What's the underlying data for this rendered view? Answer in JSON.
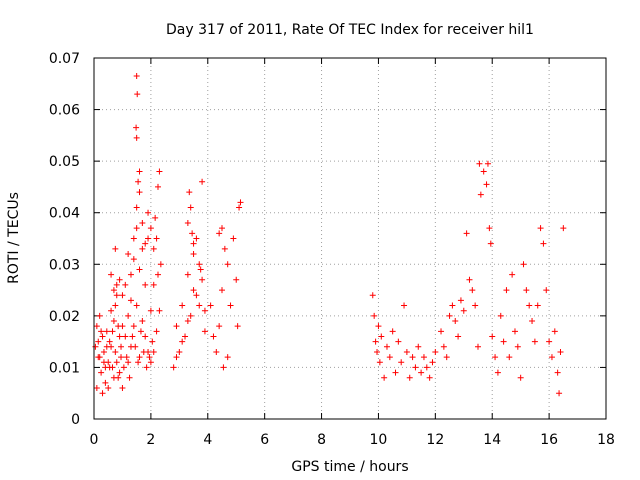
{
  "chart_data": {
    "type": "scatter",
    "title": "Day 317 of 2011, Rate Of TEC Index for receiver hil1",
    "xlabel": "GPS time / hours",
    "ylabel": "ROTI / TECUs",
    "xlim": [
      0,
      18
    ],
    "ylim": [
      0,
      0.07
    ],
    "xticks": [
      0,
      2,
      4,
      6,
      8,
      10,
      12,
      14,
      16,
      18
    ],
    "xtick_labels": [
      "0",
      "2",
      "4",
      "6",
      "8",
      "10",
      "12",
      "14",
      "16",
      "18"
    ],
    "yticks": [
      0,
      0.01,
      0.02,
      0.03,
      0.04,
      0.05,
      0.06,
      0.07
    ],
    "ytick_labels": [
      "0",
      "0.01",
      "0.02",
      "0.03",
      "0.04",
      "0.05",
      "0.06",
      "0.07"
    ],
    "grid": true,
    "legend": "none",
    "marker": "plus",
    "color": "#ff0000",
    "series": [
      {
        "name": "hil1",
        "points": [
          [
            0.05,
            0.014
          ],
          [
            0.1,
            0.018
          ],
          [
            0.15,
            0.012
          ],
          [
            0.2,
            0.02
          ],
          [
            0.25,
            0.009
          ],
          [
            0.3,
            0.016
          ],
          [
            0.35,
            0.013
          ],
          [
            0.4,
            0.007
          ],
          [
            0.45,
            0.017
          ],
          [
            0.5,
            0.011
          ],
          [
            0.55,
            0.015
          ],
          [
            0.6,
            0.021
          ],
          [
            0.65,
            0.01
          ],
          [
            0.7,
            0.019
          ],
          [
            0.75,
            0.013
          ],
          [
            0.8,
            0.024
          ],
          [
            0.85,
            0.008
          ],
          [
            0.9,
            0.016
          ],
          [
            0.95,
            0.012
          ],
          [
            1.0,
            0.018
          ],
          [
            0.1,
            0.006
          ],
          [
            0.2,
            0.012
          ],
          [
            0.3,
            0.005
          ],
          [
            0.4,
            0.01
          ],
          [
            0.5,
            0.006
          ],
          [
            0.6,
            0.014
          ],
          [
            0.7,
            0.008
          ],
          [
            0.8,
            0.011
          ],
          [
            0.9,
            0.009
          ],
          [
            1.0,
            0.006
          ],
          [
            0.15,
            0.015
          ],
          [
            0.25,
            0.017
          ],
          [
            0.35,
            0.011
          ],
          [
            0.45,
            0.014
          ],
          [
            0.55,
            0.01
          ],
          [
            0.65,
            0.017
          ],
          [
            0.75,
            0.022
          ],
          [
            0.85,
            0.018
          ],
          [
            0.95,
            0.014
          ],
          [
            1.05,
            0.01
          ],
          [
            0.6,
            0.028
          ],
          [
            0.7,
            0.025
          ],
          [
            0.75,
            0.033
          ],
          [
            0.8,
            0.026
          ],
          [
            0.9,
            0.027
          ],
          [
            1.0,
            0.024
          ],
          [
            1.1,
            0.026
          ],
          [
            1.15,
            0.012
          ],
          [
            1.2,
            0.02
          ],
          [
            1.25,
            0.008
          ],
          [
            1.3,
            0.023
          ],
          [
            1.35,
            0.016
          ],
          [
            1.4,
            0.031
          ],
          [
            1.45,
            0.014
          ],
          [
            1.5,
            0.037
          ],
          [
            1.55,
            0.011
          ],
          [
            1.6,
            0.029
          ],
          [
            1.65,
            0.017
          ],
          [
            1.7,
            0.033
          ],
          [
            1.75,
            0.013
          ],
          [
            1.8,
            0.026
          ],
          [
            1.85,
            0.01
          ],
          [
            1.9,
            0.035
          ],
          [
            1.95,
            0.012
          ],
          [
            2.0,
            0.021
          ],
          [
            2.05,
            0.015
          ],
          [
            1.1,
            0.016
          ],
          [
            1.2,
            0.011
          ],
          [
            1.3,
            0.014
          ],
          [
            1.4,
            0.018
          ],
          [
            1.5,
            0.022
          ],
          [
            1.6,
            0.012
          ],
          [
            1.7,
            0.019
          ],
          [
            1.8,
            0.016
          ],
          [
            1.9,
            0.013
          ],
          [
            2.0,
            0.011
          ],
          [
            1.2,
            0.032
          ],
          [
            1.3,
            0.028
          ],
          [
            1.4,
            0.035
          ],
          [
            1.5,
            0.041
          ],
          [
            1.6,
            0.044
          ],
          [
            1.7,
            0.038
          ],
          [
            1.8,
            0.034
          ],
          [
            1.9,
            0.04
          ],
          [
            2.0,
            0.037
          ],
          [
            2.1,
            0.033
          ],
          [
            1.5,
            0.0665
          ],
          [
            1.52,
            0.063
          ],
          [
            1.48,
            0.0565
          ],
          [
            1.5,
            0.0545
          ],
          [
            1.6,
            0.048
          ],
          [
            1.55,
            0.046
          ],
          [
            2.1,
            0.026
          ],
          [
            2.15,
            0.039
          ],
          [
            2.2,
            0.017
          ],
          [
            2.25,
            0.045
          ],
          [
            2.3,
            0.048
          ],
          [
            2.35,
            0.03
          ],
          [
            2.2,
            0.035
          ],
          [
            2.3,
            0.021
          ],
          [
            2.1,
            0.013
          ],
          [
            2.25,
            0.028
          ],
          [
            2.8,
            0.01
          ],
          [
            2.9,
            0.018
          ],
          [
            3.0,
            0.013
          ],
          [
            3.1,
            0.022
          ],
          [
            3.2,
            0.016
          ],
          [
            3.3,
            0.028
          ],
          [
            3.4,
            0.02
          ],
          [
            3.5,
            0.034
          ],
          [
            3.6,
            0.024
          ],
          [
            3.7,
            0.03
          ],
          [
            3.8,
            0.027
          ],
          [
            3.9,
            0.021
          ],
          [
            2.9,
            0.012
          ],
          [
            3.1,
            0.015
          ],
          [
            3.3,
            0.019
          ],
          [
            3.5,
            0.025
          ],
          [
            3.7,
            0.022
          ],
          [
            3.9,
            0.017
          ],
          [
            3.3,
            0.038
          ],
          [
            3.35,
            0.044
          ],
          [
            3.4,
            0.041
          ],
          [
            3.45,
            0.036
          ],
          [
            3.5,
            0.032
          ],
          [
            3.8,
            0.046
          ],
          [
            3.6,
            0.035
          ],
          [
            3.75,
            0.029
          ],
          [
            4.1,
            0.022
          ],
          [
            4.2,
            0.016
          ],
          [
            4.3,
            0.013
          ],
          [
            4.4,
            0.018
          ],
          [
            4.5,
            0.025
          ],
          [
            4.6,
            0.033
          ],
          [
            4.7,
            0.03
          ],
          [
            4.8,
            0.022
          ],
          [
            4.9,
            0.035
          ],
          [
            5.0,
            0.027
          ],
          [
            5.05,
            0.018
          ],
          [
            5.1,
            0.041
          ],
          [
            5.15,
            0.042
          ],
          [
            4.55,
            0.01
          ],
          [
            4.7,
            0.012
          ],
          [
            4.4,
            0.036
          ],
          [
            4.5,
            0.037
          ],
          [
            9.8,
            0.024
          ],
          [
            9.85,
            0.02
          ],
          [
            9.9,
            0.015
          ],
          [
            9.95,
            0.013
          ],
          [
            10.0,
            0.018
          ],
          [
            10.05,
            0.011
          ],
          [
            10.1,
            0.016
          ],
          [
            10.2,
            0.008
          ],
          [
            10.3,
            0.014
          ],
          [
            10.4,
            0.012
          ],
          [
            10.5,
            0.017
          ],
          [
            10.6,
            0.009
          ],
          [
            10.7,
            0.015
          ],
          [
            10.8,
            0.011
          ],
          [
            10.9,
            0.022
          ],
          [
            11.0,
            0.013
          ],
          [
            11.1,
            0.008
          ],
          [
            11.2,
            0.012
          ],
          [
            11.3,
            0.01
          ],
          [
            11.4,
            0.014
          ],
          [
            11.5,
            0.009
          ],
          [
            11.6,
            0.012
          ],
          [
            11.7,
            0.01
          ],
          [
            11.8,
            0.008
          ],
          [
            11.9,
            0.011
          ],
          [
            12.0,
            0.013
          ],
          [
            12.2,
            0.017
          ],
          [
            12.3,
            0.014
          ],
          [
            12.4,
            0.012
          ],
          [
            12.5,
            0.02
          ],
          [
            12.6,
            0.022
          ],
          [
            12.7,
            0.019
          ],
          [
            12.8,
            0.016
          ],
          [
            12.9,
            0.023
          ],
          [
            13.0,
            0.021
          ],
          [
            13.1,
            0.036
          ],
          [
            13.2,
            0.027
          ],
          [
            13.3,
            0.025
          ],
          [
            13.4,
            0.022
          ],
          [
            13.5,
            0.014
          ],
          [
            13.55,
            0.0495
          ],
          [
            13.6,
            0.0435
          ],
          [
            13.7,
            0.048
          ],
          [
            13.8,
            0.0455
          ],
          [
            13.85,
            0.0495
          ],
          [
            13.9,
            0.037
          ],
          [
            13.95,
            0.034
          ],
          [
            14.0,
            0.016
          ],
          [
            14.1,
            0.012
          ],
          [
            14.2,
            0.009
          ],
          [
            14.3,
            0.02
          ],
          [
            14.4,
            0.015
          ],
          [
            14.5,
            0.025
          ],
          [
            14.6,
            0.012
          ],
          [
            14.7,
            0.028
          ],
          [
            14.8,
            0.017
          ],
          [
            14.9,
            0.014
          ],
          [
            15.0,
            0.008
          ],
          [
            15.1,
            0.03
          ],
          [
            15.2,
            0.025
          ],
          [
            15.3,
            0.022
          ],
          [
            15.4,
            0.019
          ],
          [
            15.5,
            0.015
          ],
          [
            15.6,
            0.022
          ],
          [
            15.7,
            0.037
          ],
          [
            15.8,
            0.034
          ],
          [
            15.9,
            0.025
          ],
          [
            16.0,
            0.015
          ],
          [
            16.1,
            0.012
          ],
          [
            16.2,
            0.017
          ],
          [
            16.3,
            0.009
          ],
          [
            16.35,
            0.005
          ],
          [
            16.4,
            0.013
          ],
          [
            16.5,
            0.037
          ]
        ]
      }
    ]
  }
}
